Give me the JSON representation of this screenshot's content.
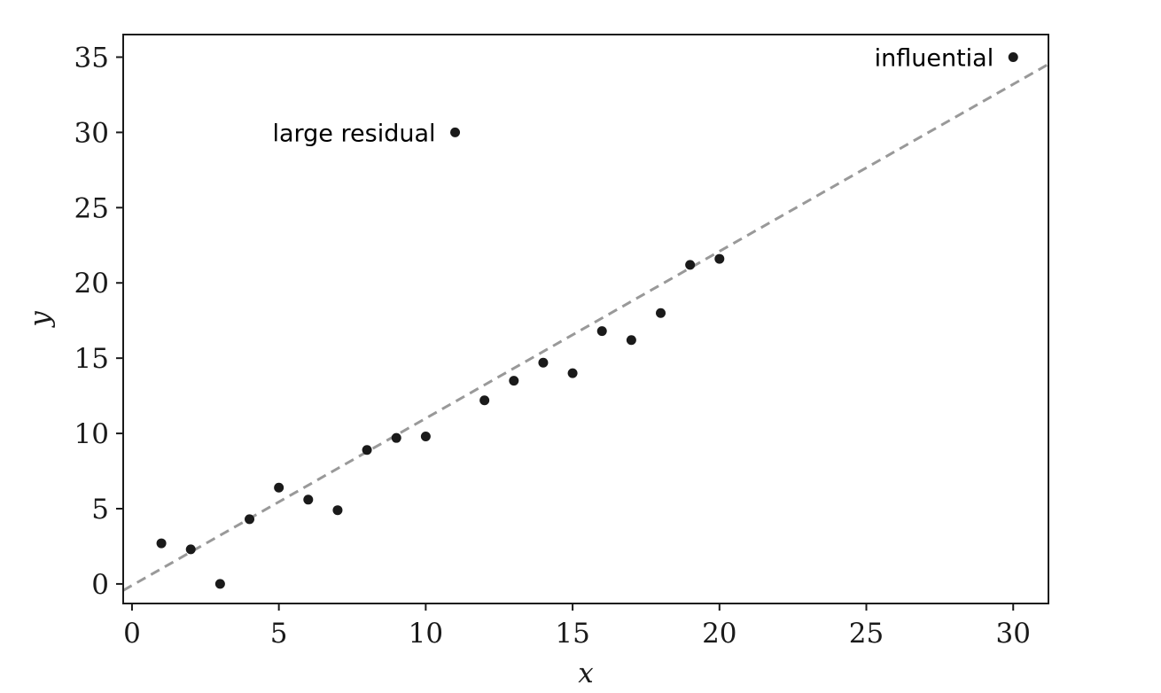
{
  "chart_data": {
    "type": "scatter",
    "title": "",
    "xlabel": "x",
    "ylabel": "y",
    "xlim": [
      -0.3,
      31.2
    ],
    "ylim": [
      -1.3,
      36.5
    ],
    "xticks": [
      0,
      5,
      10,
      15,
      20,
      25,
      30
    ],
    "yticks": [
      0,
      5,
      10,
      15,
      20,
      25,
      30,
      35
    ],
    "grid": false,
    "legend": "none",
    "series": [
      {
        "points": [
          [
            1,
            2.7
          ],
          [
            2,
            2.3
          ],
          [
            3,
            0.0
          ],
          [
            4,
            4.3
          ],
          [
            5,
            6.4
          ],
          [
            6,
            5.6
          ],
          [
            7,
            4.9
          ],
          [
            8,
            8.9
          ],
          [
            9,
            9.7
          ],
          [
            10,
            9.8
          ],
          [
            11,
            30.0
          ],
          [
            12,
            12.2
          ],
          [
            13,
            13.5
          ],
          [
            14,
            14.7
          ],
          [
            15,
            14.0
          ],
          [
            16,
            16.8
          ],
          [
            17,
            16.2
          ],
          [
            18,
            18.0
          ],
          [
            19,
            21.2
          ],
          [
            20,
            21.6
          ],
          [
            30,
            35.0
          ]
        ],
        "color": "#1a1a1a"
      }
    ],
    "fit_line": {
      "style": "dashed",
      "color": "#999999",
      "intercept": -0.1,
      "slope": 1.11
    },
    "annotations": [
      {
        "text": "large residual",
        "x": 11,
        "y": 30,
        "anchor": "left of point"
      },
      {
        "text": "influential",
        "x": 30,
        "y": 35,
        "anchor": "left of point"
      }
    ]
  }
}
